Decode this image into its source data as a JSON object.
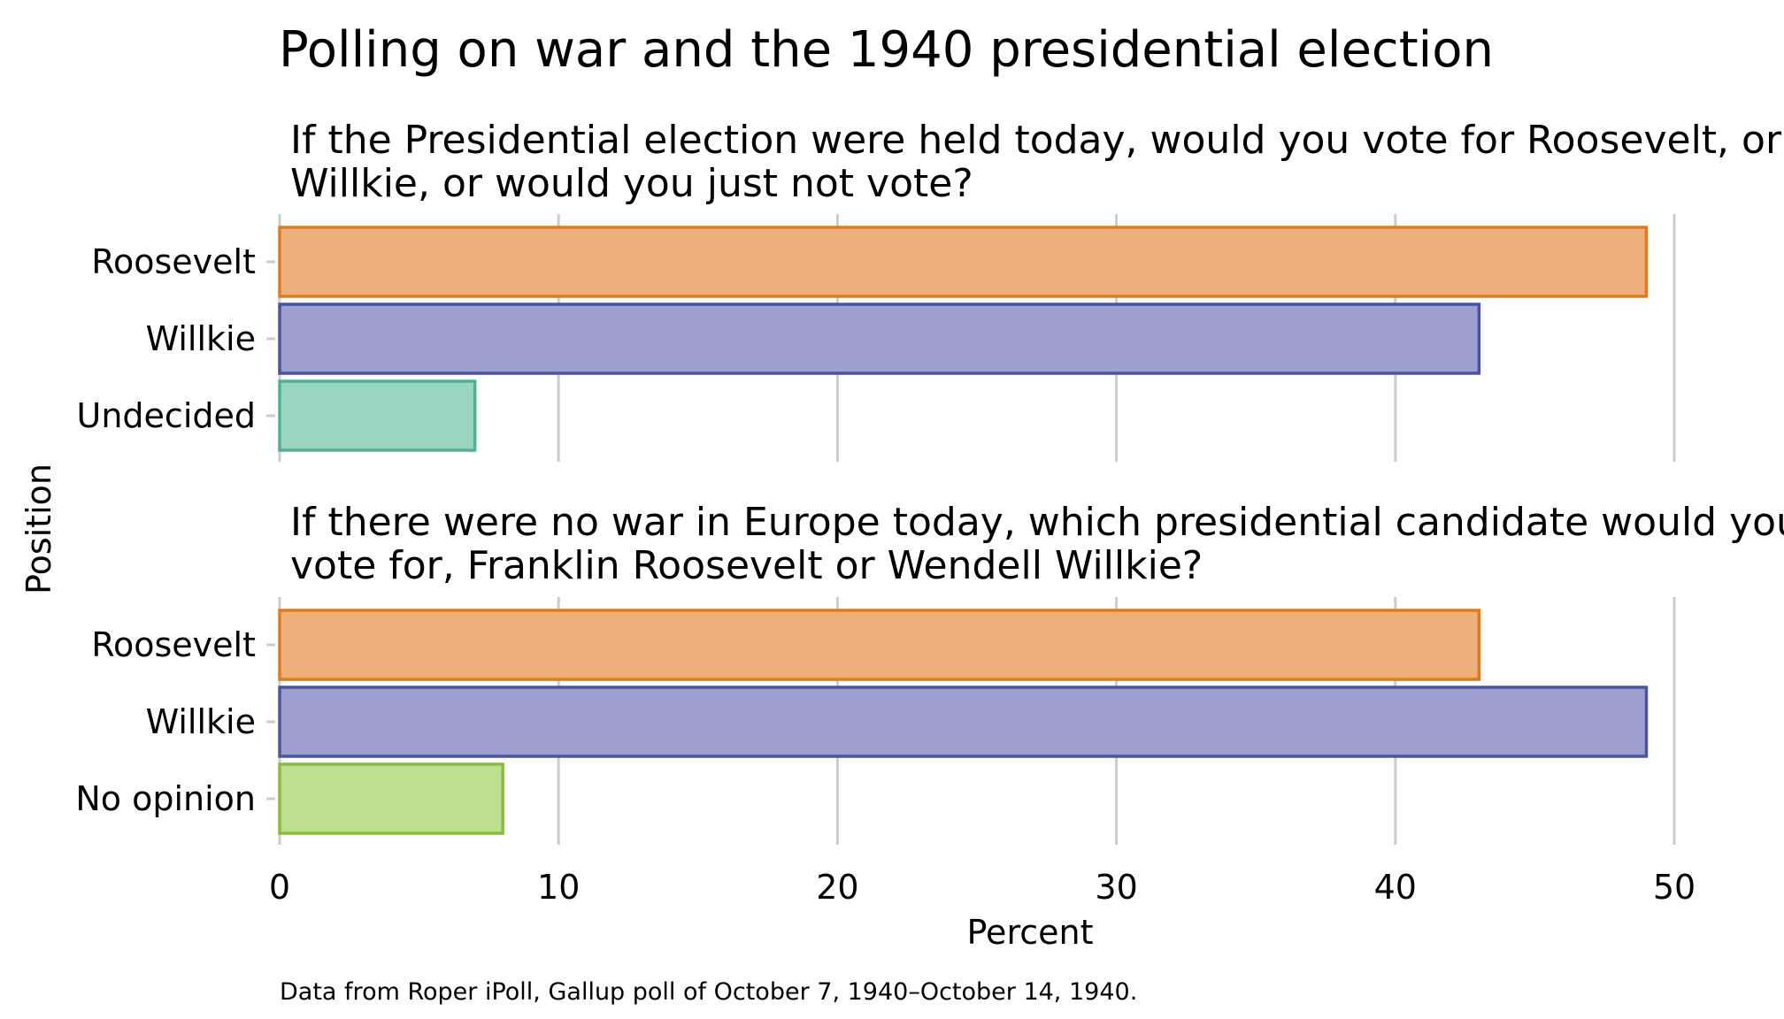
{
  "title": "Polling on war and the 1940 presidential election",
  "caption": "Data from Roper iPoll, Gallup poll of October 7, 1940–October 14, 1940.",
  "colors": {
    "roosevelt_fill": "#EDB07A",
    "roosevelt_stroke": "#E07A1F",
    "willkie_fill": "#9DA0CE",
    "willkie_stroke": "#4A53A0",
    "undecided_fill": "#9AD4C2",
    "undecided_stroke": "#4DB38F",
    "noopinion_fill": "#BEDE91",
    "noopinion_stroke": "#86BD3E",
    "grid": "#cccccc"
  },
  "chart_data": {
    "type": "bar",
    "orientation": "horizontal",
    "xlabel": "Percent",
    "ylabel": "Position",
    "xlim": [
      0,
      50
    ],
    "xticks": [
      "0",
      "10",
      "20",
      "30",
      "40",
      "50"
    ],
    "grid": true,
    "panels": [
      {
        "subtitle_lines": [
          "If the Presidential election were held today, would you vote for Roosevelt, or",
          "Willkie, or would you just not vote?"
        ],
        "categories": [
          "Roosevelt",
          "Willkie",
          "Undecided"
        ],
        "values": [
          49,
          43,
          7
        ],
        "color_keys": [
          "roosevelt",
          "willkie",
          "undecided"
        ]
      },
      {
        "subtitle_lines": [
          "If there were no war in Europe today, which presidential candidate would you",
          "vote for, Franklin Roosevelt or Wendell Willkie?"
        ],
        "categories": [
          "Roosevelt",
          "Willkie",
          "No opinion"
        ],
        "values": [
          43,
          49,
          8
        ],
        "color_keys": [
          "roosevelt",
          "willkie",
          "noopinion"
        ]
      }
    ]
  }
}
